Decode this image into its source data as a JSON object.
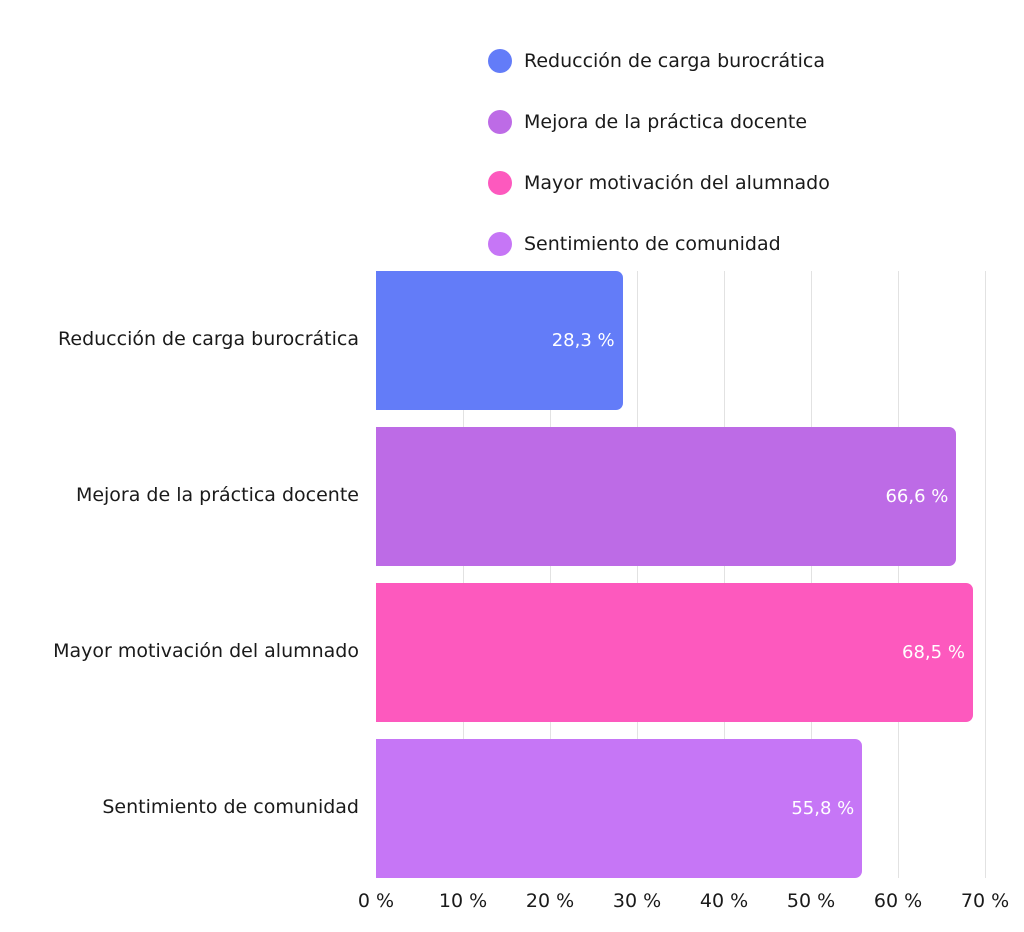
{
  "chart_data": {
    "type": "bar",
    "orientation": "horizontal",
    "title": "",
    "xlabel": "",
    "ylabel": "",
    "categories": [
      "Reducción de carga burocrática",
      "Mejora de la práctica docente",
      "Mayor motivación del alumnado",
      "Sentimiento de comunidad"
    ],
    "values": [
      28.3,
      66.6,
      68.5,
      55.8
    ],
    "value_labels": [
      "28,3 %",
      "66,6 %",
      "68,5 %",
      "55,8 %"
    ],
    "colors": [
      "#637cf8",
      "#bd6be6",
      "#fd59be",
      "#c676f6"
    ],
    "xlim": [
      0,
      70
    ],
    "x_ticks": [
      "0 %",
      "10 %",
      "20 %",
      "30 %",
      "40 %",
      "50 %",
      "60 %",
      "70 %"
    ],
    "grid": "vertical",
    "legend": {
      "position": "top",
      "entries": [
        "Reducción de carga burocrática",
        "Mejora de la práctica docente",
        "Mayor motivación del alumnado",
        "Sentimiento de comunidad"
      ]
    }
  }
}
